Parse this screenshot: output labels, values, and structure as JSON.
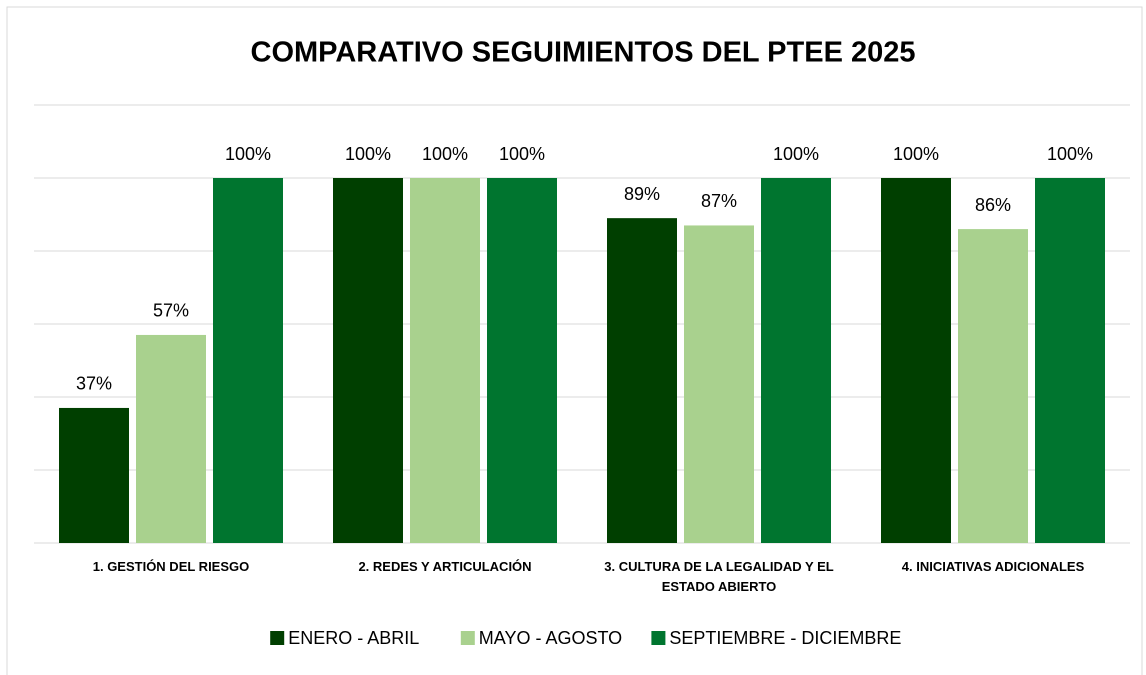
{
  "chart_data": {
    "type": "bar",
    "title": "COMPARATIVO SEGUIMIENTOS DEL PTEE 2025",
    "categories": [
      "1. GESTIÓN DEL RIESGO",
      "2. REDES Y ARTICULACIÓN",
      "3. CULTURA DE LA LEGALIDAD Y EL ESTADO ABIERTO",
      "4. INICIATIVAS ADICIONALES"
    ],
    "series": [
      {
        "name": "ENERO - ABRIL",
        "color": "#003f00",
        "values": [
          37,
          100,
          89,
          100
        ],
        "value_labels": [
          "37%",
          "100%",
          "89%",
          "100%"
        ]
      },
      {
        "name": "MAYO - AGOSTO",
        "color": "#a9d18e",
        "values": [
          57,
          100,
          87,
          86
        ],
        "value_labels": [
          "57%",
          "100%",
          "87%",
          "86%"
        ]
      },
      {
        "name": "SEPTIEMBRE - DICIEMBRE",
        "color": "#00752f",
        "values": [
          100,
          100,
          100,
          100
        ],
        "value_labels": [
          "100%",
          "100%",
          "100%",
          "100%"
        ]
      }
    ],
    "ylim": [
      0,
      120
    ],
    "yticks": [
      0,
      20,
      40,
      60,
      80,
      100,
      120
    ],
    "grid": true,
    "legend": "bottom"
  }
}
